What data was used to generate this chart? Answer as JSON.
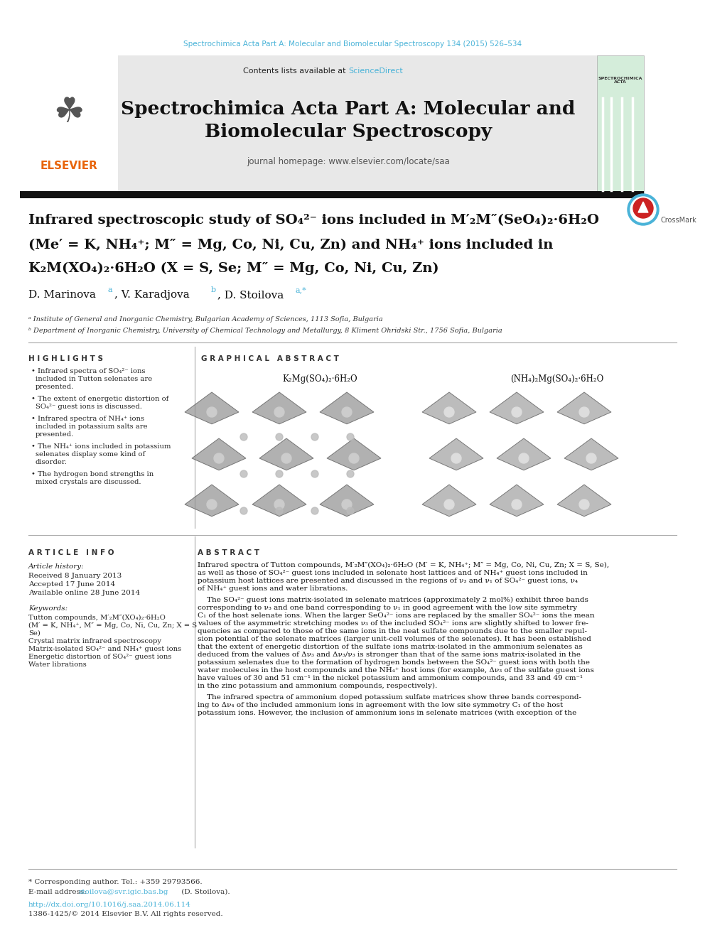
{
  "page_bg": "#ffffff",
  "top_citation": "Spectrochimica Acta Part A: Molecular and Biomolecular Spectroscopy 134 (2015) 526–534",
  "top_citation_color": "#4ab3d8",
  "header_bg": "#e8e8e8",
  "journal_title_line1": "Spectrochimica Acta Part A: Molecular and",
  "journal_title_line2": "Biomolecular Spectroscopy",
  "journal_homepage": "journal homepage: www.elsevier.com/locate/saa",
  "black_bar_color": "#1a1a1a",
  "affil_a": "ᵃ Institute of General and Inorganic Chemistry, Bulgarian Academy of Sciences, 1113 Sofia, Bulgaria",
  "affil_b": "ᵇ Department of Inorganic Chemistry, University of Chemical Technology and Metallurgy, 8 Kliment Ohridski Str., 1756 Sofia, Bulgaria",
  "highlights_title": "H I G H L I G H T S",
  "highlight_bullets": [
    "Infrared spectra of SO₄²⁻ ions\nincluded in Tutton selenates are\npresented.",
    "The extent of energetic distortion of\nSO₄²⁻ guest ions is discussed.",
    "Infrared spectra of NH₄⁺ ions\nincluded in potassium salts are\npresented.",
    "The NH₄⁺ ions included in potassium\nselenates display some kind of\ndisorder.",
    "The hydrogen bond strengths in\nmixed crystals are discussed."
  ],
  "graphical_abstract_title": "G R A P H I C A L   A B S T R A C T",
  "graphical_label_left": "K₂Mg(SO₄)₂·6H₂O",
  "graphical_label_right": "(NH₄)₂Mg(SO₄)₂·6H₂O",
  "article_info_title": "A R T I C L E   I N F O",
  "article_history_label": "Article history:",
  "received": "Received 8 January 2013",
  "accepted": "Accepted 17 June 2014",
  "available": "Available online 28 June 2014",
  "keywords_label": "Keywords:",
  "keywords": [
    "Tutton compounds, M′₂M″(XO₄)₂·6H₂O",
    "(M′ = K, NH₄⁺, M″ = Mg, Co, Ni, Cu, Zn; X = S",
    "Se)",
    "Crystal matrix infrared spectroscopy",
    "Matrix-isolated SO₄²⁻ and NH₄⁺ guest ions",
    "Energetic distortion of SO₄²⁻ guest ions",
    "Water librations"
  ],
  "abstract_title": "A B S T R A C T",
  "abstract_text_p1": "Infrared spectra of Tutton compounds, M′₂M″(XO₄)₂·6H₂O (M′ = K, NH₄⁺; M″ = Mg, Co, Ni, Cu, Zn; X = S, Se),\nas well as those of SO₄²⁻ guest ions included in selenate host lattices and of NH₄⁺ guest ions included in\npotassium host lattices are presented and discussed in the regions of ν₃ and ν₁ of SO₄²⁻ guest ions, ν₄\nof NH₄⁺ guest ions and water librations.",
  "abstract_text_p2": "    The SO₄²⁻ guest ions matrix-isolated in selenate matrices (approximately 2 mol%) exhibit three bands\ncorresponding to ν₃ and one band corresponding to ν₁ in good agreement with the low site symmetry\nC₁ of the host selenate ions. When the larger SeO₄²⁻ ions are replaced by the smaller SO₄²⁻ ions the mean\nvalues of the asymmetric stretching modes ν₃ of the included SO₄²⁻ ions are slightly shifted to lower fre-\nquencies as compared to those of the same ions in the neat sulfate compounds due to the smaller repul-\nsion potential of the selenate matrices (larger unit-cell volumes of the selenates). It has been established\nthat the extent of energetic distortion of the sulfate ions matrix-isolated in the ammonium selenates as\ndeduced from the values of Δν₃ and Δν₃/ν₃ is stronger than that of the same ions matrix-isolated in the\npotassium selenates due to the formation of hydrogen bonds between the SO₄²⁻ guest ions with both the\nwater molecules in the host compounds and the NH₄⁺ host ions (for example, Δν₃ of the sulfate guest ions\nhave values of 30 and 51 cm⁻¹ in the nickel potassium and ammonium compounds, and 33 and 49 cm⁻¹\nin the zinc potassium and ammonium compounds, respectively).",
  "abstract_text_p3": "    The infrared spectra of ammonium doped potassium sulfate matrices show three bands correspond-\ning to Δν₄ of the included ammonium ions in agreement with the low site symmetry C₁ of the host\npotassium ions. However, the inclusion of ammonium ions in selenate matrices (with exception of the",
  "footer_star": "* Corresponding author. Tel.: +359 29793566.",
  "footer_email_label": "E-mail address:",
  "footer_email": "stoilova@svr.igic.bas.bg",
  "footer_email_end": " (D. Stoilova).",
  "footer_doi": "http://dx.doi.org/10.1016/j.saa.2014.06.114",
  "footer_issn": "1386-1425/© 2014 Elsevier B.V. All rights reserved.",
  "elsevier_color": "#e8640a",
  "section_divider_color": "#aaaaaa"
}
